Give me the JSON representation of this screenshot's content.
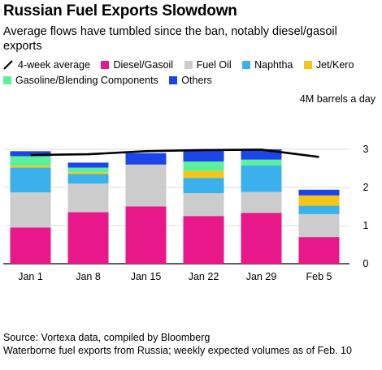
{
  "title": "Russian Fuel Exports Slowdown",
  "subtitle": "Average flows have tumbled since the ban, notably diesel/gasoil exports",
  "unit_label": "4M barrels a day",
  "footer": {
    "source": "Source: Vortexa data, compiled by Bloomberg",
    "note": "Waterborne fuel exports from Russia; weekly expected volumes as of Feb. 10"
  },
  "legend": [
    {
      "label": "4-week average",
      "type": "line",
      "color": "#000000"
    },
    {
      "label": "Diesel/Gasoil",
      "type": "box",
      "color": "#e8178a"
    },
    {
      "label": "Fuel Oil",
      "type": "box",
      "color": "#cccccc"
    },
    {
      "label": "Naphtha",
      "type": "box",
      "color": "#3ab0ed"
    },
    {
      "label": "Jet/Kero",
      "type": "box",
      "color": "#f5c518"
    },
    {
      "label": "Gasoline/Blending Components",
      "type": "box",
      "color": "#5cf09a"
    },
    {
      "label": "Others",
      "type": "box",
      "color": "#1b45e8"
    }
  ],
  "chart_data": {
    "type": "bar",
    "stacked": true,
    "categories": [
      "Jan 1",
      "Jan 8",
      "Jan 15",
      "Jan 22",
      "Jan 29",
      "Feb 5"
    ],
    "series": [
      {
        "name": "Diesel/Gasoil",
        "color": "#e8178a",
        "values": [
          0.95,
          1.35,
          1.5,
          1.25,
          1.33,
          0.7
        ]
      },
      {
        "name": "Fuel Oil",
        "color": "#cccccc",
        "values": [
          0.92,
          0.75,
          1.1,
          0.6,
          0.55,
          0.6
        ]
      },
      {
        "name": "Naphtha",
        "color": "#3ab0ed",
        "values": [
          0.65,
          0.25,
          0.0,
          0.4,
          0.7,
          0.22
        ]
      },
      {
        "name": "Jet/Kero",
        "color": "#f5c518",
        "values": [
          0.05,
          0.05,
          0.0,
          0.18,
          0.0,
          0.27
        ]
      },
      {
        "name": "Gasoline/Blending Components",
        "color": "#5cf09a",
        "values": [
          0.25,
          0.12,
          0.0,
          0.25,
          0.15,
          0.0
        ]
      },
      {
        "name": "Others",
        "color": "#1b45e8",
        "values": [
          0.13,
          0.13,
          0.3,
          0.32,
          0.27,
          0.15
        ]
      }
    ],
    "line": {
      "name": "4-week average",
      "color": "#000000",
      "values": [
        2.85,
        2.87,
        2.95,
        2.98,
        2.99,
        2.8
      ]
    },
    "ylim": [
      0,
      4
    ],
    "yticks": [
      "0",
      "1",
      "2",
      "3"
    ],
    "xlabel": "",
    "ylabel": "4M barrels a day",
    "grid": true,
    "legend_position": "top"
  }
}
